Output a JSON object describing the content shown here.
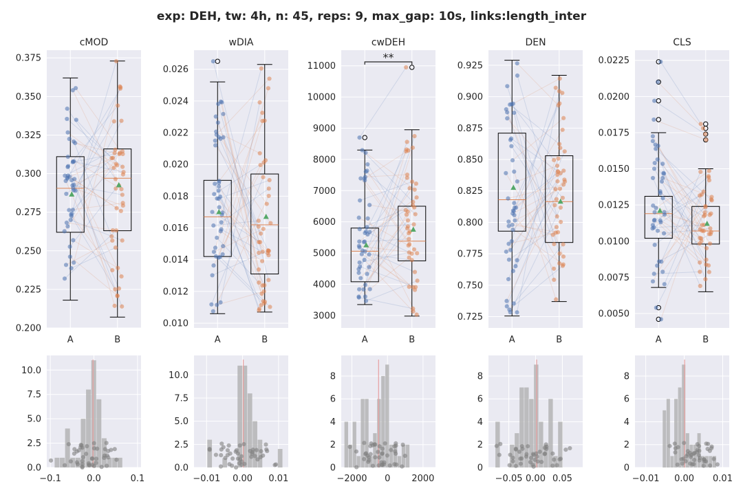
{
  "figure": {
    "title": "exp: DEH, tw: 4h, n: 45, reps: 9, max_gap: 10s, links:length_inter"
  },
  "colors": {
    "background": "#eaeaf2",
    "grid": "#ffffff",
    "group_a": "#4c72b0",
    "group_b": "#dd8452",
    "mean_marker": "#55a868",
    "median_line": "#dd8452",
    "hist_bar": "#b0b0b0",
    "hist_point": "#808080",
    "hist_zero_line": "#e8a0a0"
  },
  "chart_data": [
    {
      "type": "box",
      "title": "cMOD",
      "categories": [
        "A",
        "B"
      ],
      "ylim": [
        0.2,
        0.38
      ],
      "yticks": [
        0.2,
        0.225,
        0.25,
        0.275,
        0.3,
        0.325,
        0.35,
        0.375
      ],
      "ytick_labels": [
        "0.200",
        "0.225",
        "0.250",
        "0.275",
        "0.300",
        "0.325",
        "0.350",
        "0.375"
      ],
      "significance": "",
      "series": [
        {
          "name": "A",
          "whisker_low": 0.218,
          "q1": 0.262,
          "median": 0.2905,
          "q3": 0.311,
          "whisker_high": 0.362,
          "mean": 0.2865,
          "outliers": []
        },
        {
          "name": "B",
          "whisker_low": 0.207,
          "q1": 0.263,
          "median": 0.297,
          "q3": 0.316,
          "whisker_high": 0.373,
          "mean": 0.2925,
          "outliers": []
        }
      ]
    },
    {
      "type": "box",
      "title": "wDIA",
      "categories": [
        "A",
        "B"
      ],
      "ylim": [
        0.0097,
        0.0272
      ],
      "yticks": [
        0.01,
        0.012,
        0.014,
        0.016,
        0.018,
        0.02,
        0.022,
        0.024,
        0.026
      ],
      "ytick_labels": [
        "0.010",
        "0.012",
        "0.014",
        "0.016",
        "0.018",
        "0.020",
        "0.022",
        "0.024",
        "0.026"
      ],
      "significance": "",
      "series": [
        {
          "name": "A",
          "whisker_low": 0.0106,
          "q1": 0.0142,
          "median": 0.0167,
          "q3": 0.019,
          "whisker_high": 0.0252,
          "mean": 0.017,
          "outliers": [
            0.0265
          ]
        },
        {
          "name": "B",
          "whisker_low": 0.0107,
          "q1": 0.0131,
          "median": 0.0162,
          "q3": 0.0194,
          "whisker_high": 0.0263,
          "mean": 0.0167,
          "outliers": []
        }
      ]
    },
    {
      "type": "box",
      "title": "cwDEH",
      "categories": [
        "A",
        "B"
      ],
      "ylim": [
        2600,
        11500
      ],
      "yticks": [
        3000,
        4000,
        5000,
        6000,
        7000,
        8000,
        9000,
        10000,
        11000
      ],
      "ytick_labels": [
        "3000",
        "4000",
        "5000",
        "6000",
        "7000",
        "8000",
        "9000",
        "10000",
        "11000"
      ],
      "significance": "**",
      "series": [
        {
          "name": "A",
          "whisker_low": 3350,
          "q1": 4080,
          "median": 5060,
          "q3": 5800,
          "whisker_high": 8300,
          "mean": 5250,
          "outliers": [
            8700
          ]
        },
        {
          "name": "B",
          "whisker_low": 2980,
          "q1": 4750,
          "median": 5380,
          "q3": 6500,
          "whisker_high": 8950,
          "mean": 5750,
          "outliers": [
            10950
          ]
        }
      ]
    },
    {
      "type": "box",
      "title": "DEN",
      "categories": [
        "A",
        "B"
      ],
      "ylim": [
        0.716,
        0.937
      ],
      "yticks": [
        0.725,
        0.75,
        0.775,
        0.8,
        0.825,
        0.85,
        0.875,
        0.9,
        0.925
      ],
      "ytick_labels": [
        "0.725",
        "0.750",
        "0.775",
        "0.800",
        "0.825",
        "0.850",
        "0.875",
        "0.900",
        "0.925"
      ],
      "significance": "",
      "series": [
        {
          "name": "A",
          "whisker_low": 0.7255,
          "q1": 0.793,
          "median": 0.818,
          "q3": 0.871,
          "whisker_high": 0.929,
          "mean": 0.8275,
          "outliers": []
        },
        {
          "name": "B",
          "whisker_low": 0.737,
          "q1": 0.784,
          "median": 0.8165,
          "q3": 0.853,
          "whisker_high": 0.917,
          "mean": 0.8165,
          "outliers": []
        }
      ]
    },
    {
      "type": "box",
      "title": "CLS",
      "categories": [
        "A",
        "B"
      ],
      "ylim": [
        0.004,
        0.0232
      ],
      "yticks": [
        0.005,
        0.0075,
        0.01,
        0.0125,
        0.015,
        0.0175,
        0.02,
        0.0225
      ],
      "ytick_labels": [
        "0.0050",
        "0.0075",
        "0.0100",
        "0.0125",
        "0.0150",
        "0.0175",
        "0.0200",
        "0.0225"
      ],
      "significance": "",
      "series": [
        {
          "name": "A",
          "whisker_low": 0.0068,
          "q1": 0.0102,
          "median": 0.0119,
          "q3": 0.0131,
          "whisker_high": 0.0175,
          "mean": 0.0121,
          "outliers": [
            0.0046,
            0.0054,
            0.0184,
            0.0197,
            0.021,
            0.0224
          ]
        },
        {
          "name": "B",
          "whisker_low": 0.0065,
          "q1": 0.0098,
          "median": 0.0107,
          "q3": 0.0124,
          "whisker_high": 0.015,
          "mean": 0.0112,
          "outliers": [
            0.017,
            0.0174,
            0.0178,
            0.0181
          ]
        }
      ]
    },
    {
      "type": "histogram",
      "xlim": [
        -0.108,
        0.108
      ],
      "ylim": [
        0,
        11.5
      ],
      "xticks": [
        -0.1,
        0,
        0.1
      ],
      "xtick_labels": [
        "−0.1",
        "0.0",
        "0.1"
      ],
      "yticks": [
        0,
        2.5,
        5,
        7.5,
        10
      ],
      "ytick_labels": [
        "0.0",
        "2.5",
        "5.0",
        "7.5",
        "10.0"
      ],
      "zero_line": -0.002,
      "bin_edges": [
        -0.09,
        -0.078,
        -0.066,
        -0.054,
        -0.042,
        -0.03,
        -0.018,
        -0.006,
        0.006,
        0.018,
        0.03,
        0.042,
        0.054,
        0.066
      ],
      "counts": [
        1,
        1,
        4,
        1,
        1,
        5,
        8,
        11,
        7,
        3,
        1,
        1,
        1
      ]
    },
    {
      "type": "histogram",
      "xlim": [
        -0.0135,
        0.0127
      ],
      "ylim": [
        0,
        12.1
      ],
      "xticks": [
        -0.01,
        0,
        0.01
      ],
      "xtick_labels": [
        "−0.01",
        "0.00",
        "0.01"
      ],
      "yticks": [
        0,
        2.5,
        5,
        7.5,
        10
      ],
      "ytick_labels": [
        "0.0",
        "2.5",
        "5.0",
        "7.5",
        "10.0"
      ],
      "zero_line": 0.0002,
      "bin_edges": [
        -0.0112,
        -0.0098,
        -0.0084,
        -0.007,
        -0.0056,
        -0.0042,
        -0.0028,
        -0.0014,
        0.0,
        0.0014,
        0.0028,
        0.0042,
        0.0056,
        0.007,
        0.0084,
        0.0098,
        0.0112
      ],
      "counts": [
        0,
        3,
        0,
        0,
        1,
        0,
        0,
        11,
        11,
        8,
        5,
        3,
        0,
        0,
        0,
        2
      ]
    },
    {
      "type": "histogram",
      "xlim": [
        -2600,
        2700
      ],
      "ylim": [
        0,
        9.8
      ],
      "xticks": [
        -2000,
        0,
        2000
      ],
      "xtick_labels": [
        "−2000",
        "0",
        "2000"
      ],
      "yticks": [
        0,
        2,
        4,
        6,
        8
      ],
      "ytick_labels": [
        "0",
        "2",
        "4",
        "6",
        "8"
      ],
      "zero_line": -500,
      "bin_edges": [
        -2420,
        -2190,
        -1960,
        -1730,
        -1500,
        -1270,
        -1040,
        -810,
        -580,
        -350,
        -120,
        110,
        340,
        570,
        800,
        1030,
        1260,
        1490
      ],
      "counts": [
        4,
        2,
        4,
        1,
        6,
        6,
        1,
        3,
        6,
        8,
        9,
        2,
        2,
        1,
        2,
        2,
        0
      ]
    },
    {
      "type": "histogram",
      "xlim": [
        -0.088,
        0.088
      ],
      "ylim": [
        0,
        9.8
      ],
      "xticks": [
        -0.05,
        0,
        0.05
      ],
      "xtick_labels": [
        "−0.05",
        "0.00",
        "0.05"
      ],
      "yticks": [
        0,
        2,
        4,
        6,
        8
      ],
      "ytick_labels": [
        "0",
        "2",
        "4",
        "6",
        "8"
      ],
      "zero_line": 0.002,
      "bin_edges": [
        -0.075,
        -0.066,
        -0.057,
        -0.048,
        -0.039,
        -0.03,
        -0.021,
        -0.012,
        -0.003,
        0.006,
        0.015,
        0.024,
        0.033,
        0.042,
        0.051,
        0.06
      ],
      "counts": [
        4,
        0,
        0,
        2,
        3,
        7,
        7,
        6,
        9,
        4,
        2,
        6,
        1,
        4,
        0
      ]
    },
    {
      "type": "histogram",
      "xlim": [
        -0.0128,
        0.0117
      ],
      "ylim": [
        0,
        9.8
      ],
      "xticks": [
        -0.01,
        0,
        0.01
      ],
      "xtick_labels": [
        "−0.01",
        "0.00",
        "0.01"
      ],
      "yticks": [
        0,
        2,
        4,
        6,
        8
      ],
      "ytick_labels": [
        "0",
        "2",
        "4",
        "6",
        "8"
      ],
      "zero_line": 0.0001,
      "bin_edges": [
        -0.0056,
        -0.0046,
        -0.0036,
        -0.0026,
        -0.0016,
        -0.0006,
        0.0004,
        0.0014,
        0.0024,
        0.0034,
        0.0044,
        0.0054,
        0.0064,
        0.0074,
        0.0084,
        0.0094
      ],
      "counts": [
        5,
        6,
        1,
        6,
        7,
        9,
        3,
        2,
        2,
        3,
        1,
        1,
        1,
        1,
        0
      ]
    }
  ]
}
